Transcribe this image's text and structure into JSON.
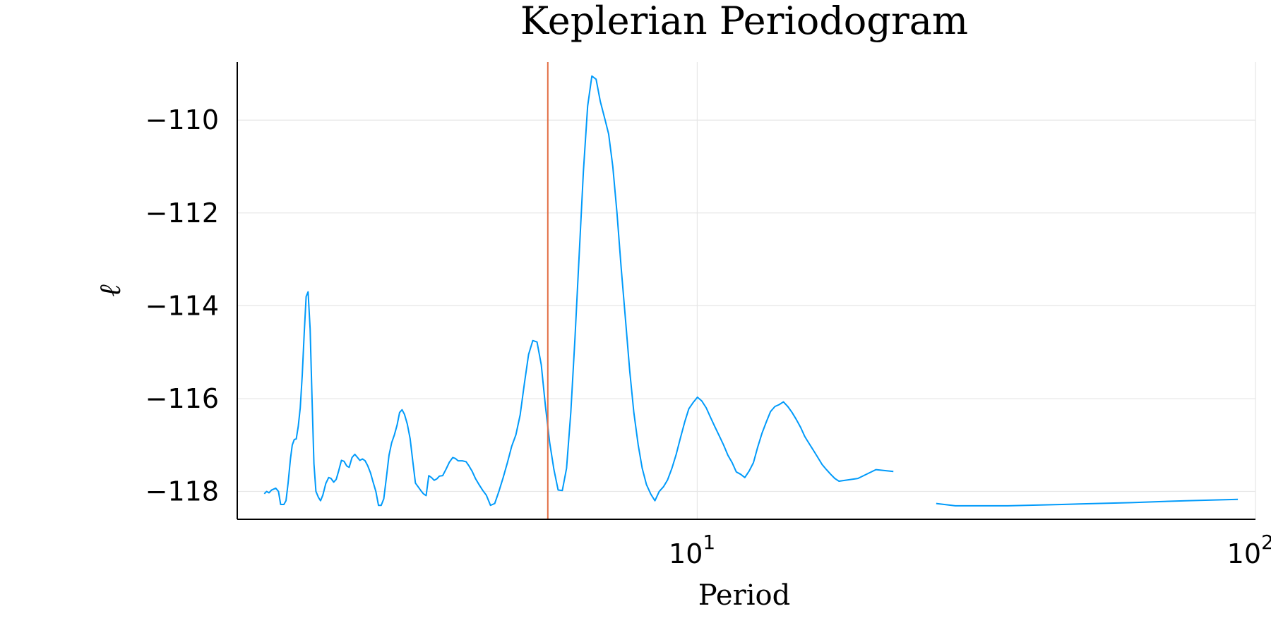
{
  "chart_data": {
    "type": "line",
    "title": "Keplerian Periodogram",
    "xlabel": "Period",
    "ylabel": "ℓ",
    "xscale": "log",
    "xlim": [
      1.5,
      100
    ],
    "ylim": [
      -118.6,
      -108.75
    ],
    "grid": true,
    "legend": "none",
    "x_ticks": [
      {
        "value": 10,
        "base": "10",
        "exp": "1"
      },
      {
        "value": 100,
        "base": "10",
        "exp": "2"
      }
    ],
    "y_ticks": [
      {
        "value": -110,
        "label": "−110"
      },
      {
        "value": -112,
        "label": "−112"
      },
      {
        "value": -114,
        "label": "−114"
      },
      {
        "value": -116,
        "label": "−116"
      },
      {
        "value": -118,
        "label": "−118"
      }
    ],
    "colors": {
      "series": "#009AFA",
      "marker_line": "#E26F46"
    },
    "vline": {
      "x": 5.4
    },
    "series": [
      {
        "segments": [
          [
            [
              1.677,
              -118.05
            ],
            [
              1.693,
              -118.0
            ],
            [
              1.71,
              -118.03
            ],
            [
              1.728,
              -117.97
            ],
            [
              1.758,
              -117.93
            ],
            [
              1.778,
              -118.0
            ],
            [
              1.794,
              -118.28
            ],
            [
              1.818,
              -118.28
            ],
            [
              1.834,
              -118.2
            ],
            [
              1.85,
              -117.82
            ],
            [
              1.868,
              -117.3
            ],
            [
              1.882,
              -117.0
            ],
            [
              1.898,
              -116.88
            ],
            [
              1.913,
              -116.87
            ],
            [
              1.929,
              -116.6
            ],
            [
              1.945,
              -116.2
            ],
            [
              1.961,
              -115.5
            ],
            [
              1.977,
              -114.6
            ],
            [
              1.993,
              -113.8
            ],
            [
              2.009,
              -113.7
            ],
            [
              2.026,
              -114.5
            ],
            [
              2.042,
              -116.0
            ],
            [
              2.058,
              -117.4
            ],
            [
              2.075,
              -118.0
            ],
            [
              2.097,
              -118.13
            ],
            [
              2.115,
              -118.2
            ],
            [
              2.135,
              -118.08
            ],
            [
              2.161,
              -117.83
            ],
            [
              2.187,
              -117.7
            ],
            [
              2.208,
              -117.72
            ],
            [
              2.233,
              -117.8
            ],
            [
              2.256,
              -117.74
            ],
            [
              2.28,
              -117.55
            ],
            [
              2.305,
              -117.33
            ],
            [
              2.33,
              -117.35
            ],
            [
              2.356,
              -117.45
            ],
            [
              2.38,
              -117.48
            ],
            [
              2.408,
              -117.27
            ],
            [
              2.436,
              -117.2
            ],
            [
              2.46,
              -117.26
            ],
            [
              2.487,
              -117.33
            ],
            [
              2.514,
              -117.3
            ],
            [
              2.542,
              -117.34
            ],
            [
              2.57,
              -117.45
            ],
            [
              2.599,
              -117.6
            ],
            [
              2.627,
              -117.8
            ],
            [
              2.657,
              -118.0
            ],
            [
              2.686,
              -118.3
            ],
            [
              2.716,
              -118.3
            ],
            [
              2.745,
              -118.16
            ],
            [
              2.775,
              -117.7
            ],
            [
              2.805,
              -117.22
            ],
            [
              2.836,
              -116.95
            ],
            [
              2.868,
              -116.78
            ],
            [
              2.9,
              -116.57
            ],
            [
              2.93,
              -116.3
            ],
            [
              2.96,
              -116.24
            ],
            [
              2.99,
              -116.34
            ],
            [
              3.025,
              -116.55
            ],
            [
              3.06,
              -116.86
            ],
            [
              3.094,
              -117.35
            ],
            [
              3.128,
              -117.82
            ],
            [
              3.163,
              -117.9
            ],
            [
              3.198,
              -117.98
            ],
            [
              3.233,
              -118.05
            ],
            [
              3.269,
              -118.09
            ],
            [
              3.305,
              -117.66
            ],
            [
              3.342,
              -117.7
            ],
            [
              3.379,
              -117.76
            ],
            [
              3.416,
              -117.73
            ],
            [
              3.453,
              -117.67
            ],
            [
              3.5,
              -117.66
            ],
            [
              3.549,
              -117.52
            ],
            [
              3.598,
              -117.37
            ],
            [
              3.648,
              -117.27
            ],
            [
              3.689,
              -117.29
            ],
            [
              3.73,
              -117.34
            ],
            [
              3.796,
              -117.34
            ],
            [
              3.855,
              -117.36
            ],
            [
              3.901,
              -117.45
            ],
            [
              3.95,
              -117.56
            ],
            [
              4.01,
              -117.73
            ],
            [
              4.07,
              -117.86
            ],
            [
              4.13,
              -117.98
            ],
            [
              4.19,
              -118.08
            ],
            [
              4.263,
              -118.3
            ],
            [
              4.338,
              -118.26
            ],
            [
              4.413,
              -118.0
            ],
            [
              4.492,
              -117.7
            ],
            [
              4.571,
              -117.38
            ],
            [
              4.652,
              -117.03
            ],
            [
              4.734,
              -116.78
            ],
            [
              4.818,
              -116.35
            ],
            [
              4.902,
              -115.68
            ],
            [
              4.988,
              -115.05
            ],
            [
              5.076,
              -114.75
            ],
            [
              5.165,
              -114.78
            ],
            [
              5.256,
              -115.27
            ],
            [
              5.348,
              -116.17
            ],
            [
              5.442,
              -116.95
            ],
            [
              5.538,
              -117.53
            ],
            [
              5.635,
              -117.97
            ],
            [
              5.733,
              -117.98
            ],
            [
              5.834,
              -117.5
            ],
            [
              5.937,
              -116.3
            ],
            [
              6.04,
              -114.7
            ],
            [
              6.146,
              -112.9
            ],
            [
              6.254,
              -111.1
            ],
            [
              6.364,
              -109.7
            ],
            [
              6.476,
              -109.05
            ],
            [
              6.59,
              -109.12
            ],
            [
              6.706,
              -109.6
            ],
            [
              6.841,
              -110.0
            ],
            [
              6.94,
              -110.3
            ],
            [
              7.06,
              -111.0
            ],
            [
              7.183,
              -112.0
            ],
            [
              7.31,
              -113.2
            ],
            [
              7.44,
              -114.3
            ],
            [
              7.57,
              -115.4
            ],
            [
              7.7,
              -116.3
            ],
            [
              7.84,
              -117.0
            ],
            [
              7.97,
              -117.5
            ],
            [
              8.11,
              -117.85
            ],
            [
              8.26,
              -118.06
            ],
            [
              8.4,
              -118.2
            ],
            [
              8.55,
              -118.0
            ],
            [
              8.7,
              -117.9
            ],
            [
              8.85,
              -117.75
            ],
            [
              9.01,
              -117.5
            ],
            [
              9.17,
              -117.2
            ],
            [
              9.33,
              -116.85
            ],
            [
              9.5,
              -116.5
            ],
            [
              9.66,
              -116.22
            ],
            [
              9.84,
              -116.08
            ],
            [
              10.01,
              -115.97
            ],
            [
              10.19,
              -116.05
            ],
            [
              10.38,
              -116.2
            ],
            [
              10.56,
              -116.4
            ],
            [
              10.75,
              -116.6
            ],
            [
              10.95,
              -116.8
            ],
            [
              11.15,
              -117.0
            ],
            [
              11.35,
              -117.22
            ],
            [
              11.55,
              -117.38
            ],
            [
              11.75,
              -117.58
            ],
            [
              11.96,
              -117.63
            ],
            [
              12.17,
              -117.7
            ],
            [
              12.39,
              -117.56
            ],
            [
              12.61,
              -117.38
            ],
            [
              12.83,
              -117.05
            ],
            [
              13.06,
              -116.75
            ],
            [
              13.3,
              -116.5
            ],
            [
              13.53,
              -116.28
            ],
            [
              13.78,
              -116.17
            ],
            [
              14.02,
              -116.13
            ],
            [
              14.27,
              -116.07
            ],
            [
              14.53,
              -116.17
            ],
            [
              14.79,
              -116.3
            ],
            [
              15.05,
              -116.45
            ],
            [
              15.32,
              -116.62
            ],
            [
              15.59,
              -116.82
            ],
            [
              15.87,
              -116.97
            ],
            [
              16.16,
              -117.12
            ],
            [
              16.45,
              -117.27
            ],
            [
              16.74,
              -117.42
            ],
            [
              17.04,
              -117.53
            ],
            [
              17.34,
              -117.63
            ],
            [
              17.64,
              -117.72
            ],
            [
              17.95,
              -117.78
            ],
            [
              19.4,
              -117.72
            ],
            [
              20.9,
              -117.53
            ],
            [
              22.46,
              -117.57
            ]
          ],
          [
            [
              26.8,
              -118.26
            ],
            [
              29.0,
              -118.31
            ],
            [
              36.0,
              -118.31
            ],
            [
              45.0,
              -118.28
            ],
            [
              60.0,
              -118.24
            ],
            [
              75.0,
              -118.2
            ],
            [
              93.0,
              -118.17
            ]
          ]
        ]
      }
    ]
  }
}
